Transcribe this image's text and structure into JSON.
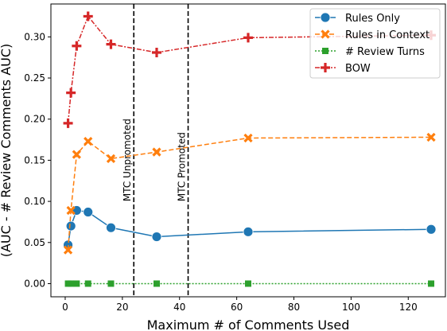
{
  "chart_data": {
    "type": "line",
    "xlabel": "Maximum # of Comments Used",
    "ylabel": "(AUC - # Review Comments AUC)",
    "xlim": [
      -5,
      133
    ],
    "ylim": [
      -0.016,
      0.34
    ],
    "xticks": [
      0,
      20,
      40,
      60,
      80,
      100,
      120
    ],
    "yticks": [
      0.0,
      0.05,
      0.1,
      0.15,
      0.2,
      0.25,
      0.3
    ],
    "grid": false,
    "legend_position": "top-right",
    "x": [
      1,
      2,
      4,
      8,
      16,
      32,
      64,
      128
    ],
    "series": [
      {
        "name": "Rules Only",
        "color": "#1f77b4",
        "line_style": "solid",
        "marker": "circle",
        "values": [
          0.047,
          0.07,
          0.089,
          0.087,
          0.068,
          0.057,
          0.063,
          0.066
        ]
      },
      {
        "name": "Rules in Context",
        "color": "#ff7f0e",
        "line_style": "dashed",
        "marker": "x",
        "values": [
          0.041,
          0.089,
          0.157,
          0.173,
          0.152,
          0.16,
          0.177,
          0.178
        ]
      },
      {
        "name": "# Review Turns",
        "color": "#2ca02c",
        "line_style": "dotted",
        "marker": "square",
        "values": [
          0.0,
          0.0,
          0.0,
          0.0,
          0.0,
          0.0,
          0.0,
          0.0
        ]
      },
      {
        "name": "BOW",
        "color": "#d62728",
        "line_style": "dashdot",
        "marker": "plus",
        "values": [
          0.195,
          0.232,
          0.289,
          0.325,
          0.291,
          0.281,
          0.299,
          0.302
        ]
      }
    ],
    "vertical_lines": [
      {
        "x": 24,
        "label": "MTC Unpromoted"
      },
      {
        "x": 43,
        "label": "MTC Promoted"
      }
    ]
  }
}
